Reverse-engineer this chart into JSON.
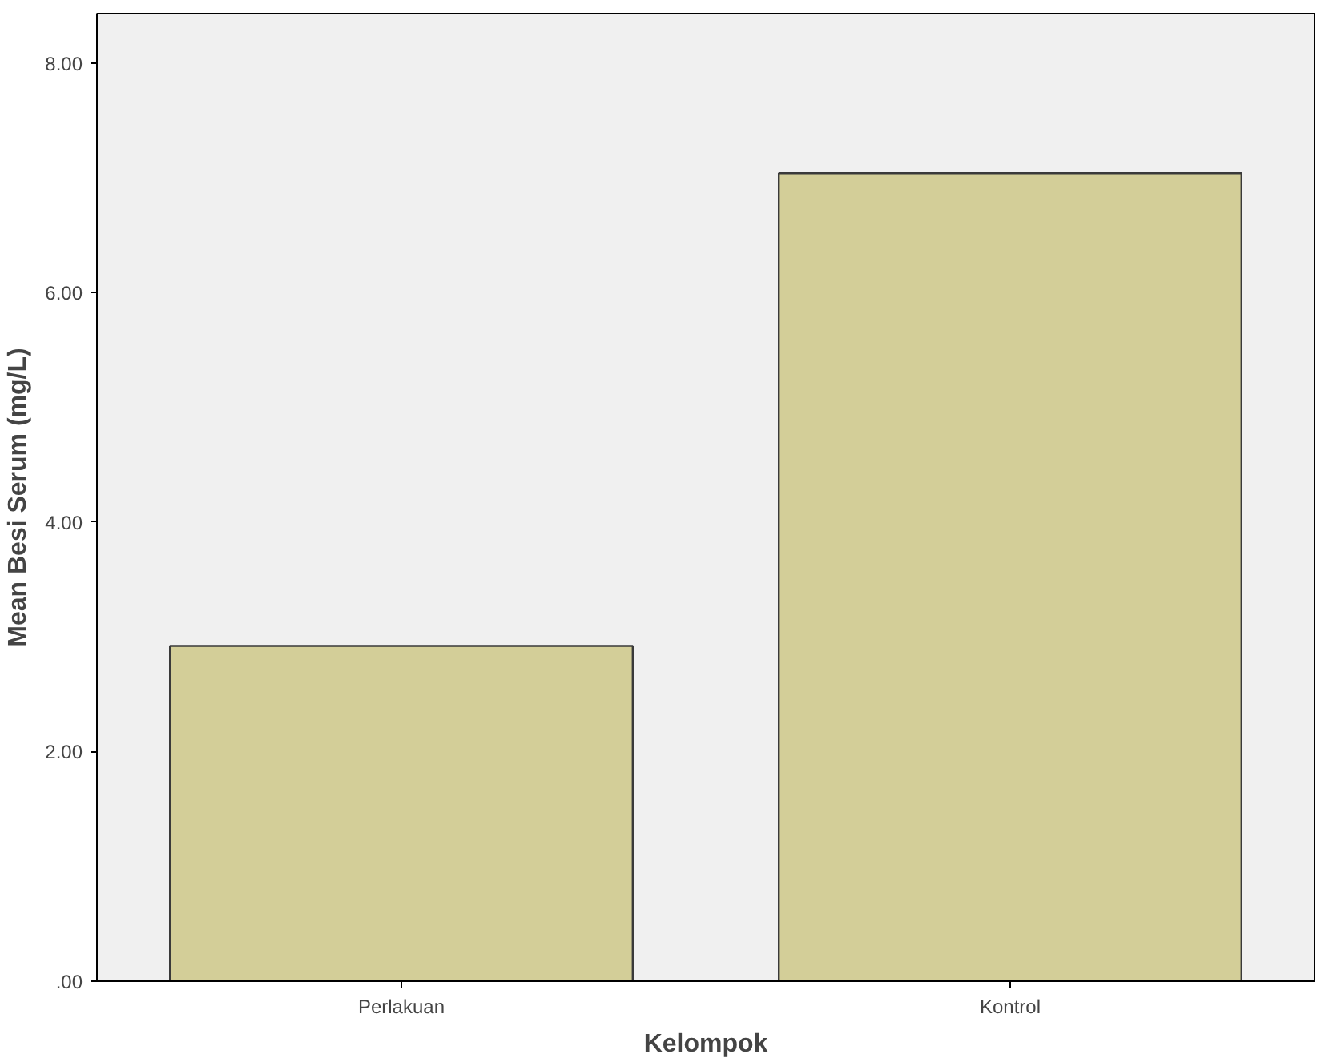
{
  "chart_data": {
    "type": "bar",
    "xlabel": "Kelompok",
    "ylabel": "Mean Besi Serum (mg/L)",
    "categories": [
      "Perlakuan",
      "Kontrol"
    ],
    "values": [
      2.92,
      7.04
    ],
    "color": "#d3ce98",
    "ylim": [
      0,
      8.43
    ],
    "yticks": [
      {
        "value": 0,
        "label": ".00"
      },
      {
        "value": 2,
        "label": "2.00"
      },
      {
        "value": 4,
        "label": "4.00"
      },
      {
        "value": 6,
        "label": "6.00"
      },
      {
        "value": 8,
        "label": "8.00"
      }
    ],
    "grid": false
  }
}
